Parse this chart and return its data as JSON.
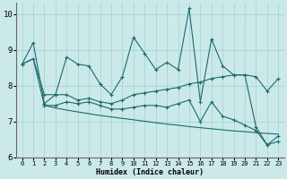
{
  "xlabel": "Humidex (Indice chaleur)",
  "xlim": [
    -0.5,
    23.5
  ],
  "ylim": [
    6,
    10.3
  ],
  "yticks": [
    6,
    7,
    8,
    9,
    10
  ],
  "xticks": [
    0,
    1,
    2,
    3,
    4,
    5,
    6,
    7,
    8,
    9,
    10,
    11,
    12,
    13,
    14,
    15,
    16,
    17,
    18,
    19,
    20,
    21,
    22,
    23
  ],
  "background_color": "#cce9e9",
  "grid_color": "#a8d4d4",
  "line_color": "#1a6b6b",
  "line1_x": [
    0,
    1,
    2,
    3,
    4,
    5,
    6,
    7,
    8,
    9,
    10,
    11,
    12,
    13,
    14,
    15,
    16,
    17,
    18,
    19,
    20,
    21,
    22,
    23
  ],
  "line1_y": [
    8.6,
    9.2,
    7.5,
    7.75,
    8.8,
    8.6,
    8.55,
    8.05,
    7.75,
    8.25,
    9.35,
    8.9,
    8.45,
    8.65,
    8.45,
    10.15,
    7.55,
    9.3,
    8.55,
    8.3,
    8.3,
    6.85,
    6.35,
    6.6
  ],
  "line2_x": [
    0,
    1,
    2,
    3,
    4,
    5,
    6,
    7,
    8,
    9,
    10,
    11,
    12,
    13,
    14,
    15,
    16,
    17,
    18,
    19,
    20,
    21,
    22,
    23
  ],
  "line2_y": [
    8.6,
    8.75,
    7.75,
    7.75,
    7.75,
    7.6,
    7.65,
    7.55,
    7.5,
    7.6,
    7.75,
    7.8,
    7.85,
    7.9,
    7.95,
    8.05,
    8.1,
    8.2,
    8.25,
    8.3,
    8.3,
    8.25,
    7.85,
    8.2
  ],
  "line2_markers": true,
  "line3_x": [
    2,
    3,
    4,
    5,
    6,
    7,
    8,
    9,
    10,
    11,
    12,
    13,
    14,
    15,
    16,
    17,
    18,
    19,
    20,
    21,
    22,
    23
  ],
  "line3_y": [
    7.45,
    7.45,
    7.55,
    7.5,
    7.55,
    7.45,
    7.35,
    7.35,
    7.4,
    7.45,
    7.45,
    7.4,
    7.5,
    7.6,
    7.0,
    7.55,
    7.15,
    7.05,
    6.9,
    6.75,
    6.35,
    6.45
  ],
  "line3_markers": true,
  "line4_x": [
    0,
    1,
    2,
    3,
    4,
    5,
    6,
    7,
    8,
    9,
    10,
    11,
    12,
    13,
    14,
    15,
    16,
    17,
    18,
    19,
    20,
    21,
    22,
    23
  ],
  "line4_y": [
    8.6,
    8.75,
    7.45,
    7.38,
    7.32,
    7.27,
    7.22,
    7.17,
    7.13,
    7.09,
    7.05,
    7.01,
    6.97,
    6.93,
    6.9,
    6.86,
    6.83,
    6.8,
    6.77,
    6.74,
    6.72,
    6.69,
    6.67,
    6.65
  ],
  "line4_markers": false
}
